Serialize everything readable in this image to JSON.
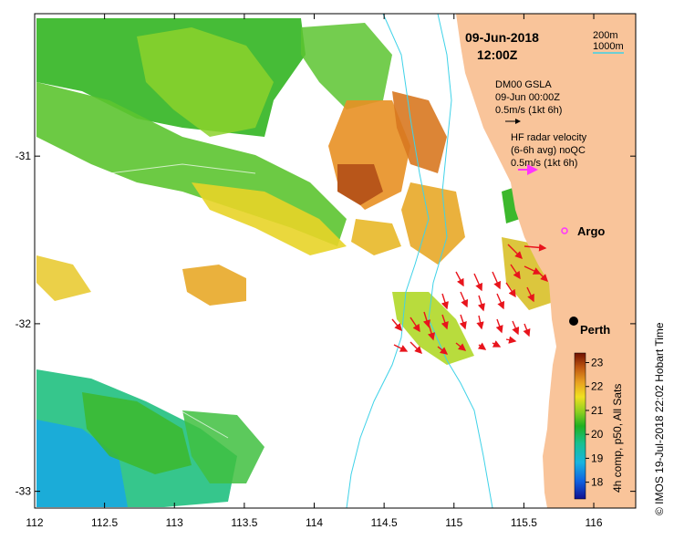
{
  "map": {
    "date": "09-Jun-2018",
    "time": "12:00Z",
    "lon_ticks": [
      "112",
      "112.5",
      "113",
      "113.5",
      "114",
      "114.5",
      "115",
      "115.5",
      "116"
    ],
    "lat_ticks": [
      "-31",
      "-32",
      "-33"
    ],
    "lon_range": [
      112,
      116.3
    ],
    "lat_range": [
      -33.1,
      -30.15
    ],
    "scale_200m": "200m",
    "scale_1000m": "1000m",
    "gsla_title": "DM00 GSLA",
    "gsla_date": "09-Jun 00:00Z",
    "gsla_scale": "0.5m/s (1kt 6h)",
    "hf_title": "HF radar velocity",
    "hf_sub": "(6-6h avg) noQC",
    "hf_scale": "0.5m/s (1kt 6h)",
    "argo_label": "Argo",
    "perth_label": "Perth",
    "colorbar_title": "4h comp, p50, All Sats",
    "colorbar_ticks": [
      "23",
      "22",
      "21",
      "20",
      "19",
      "18"
    ],
    "credit": "© IMOS 19-Jul-2018 22:02 Hobart Time",
    "colors": {
      "land": "#f9c49a",
      "isobath": "#3fd2e8",
      "hf_arrow": "#e8141c",
      "hf_legend_arrow": "#ff33ff",
      "argo_marker": "#ff33ff"
    }
  }
}
